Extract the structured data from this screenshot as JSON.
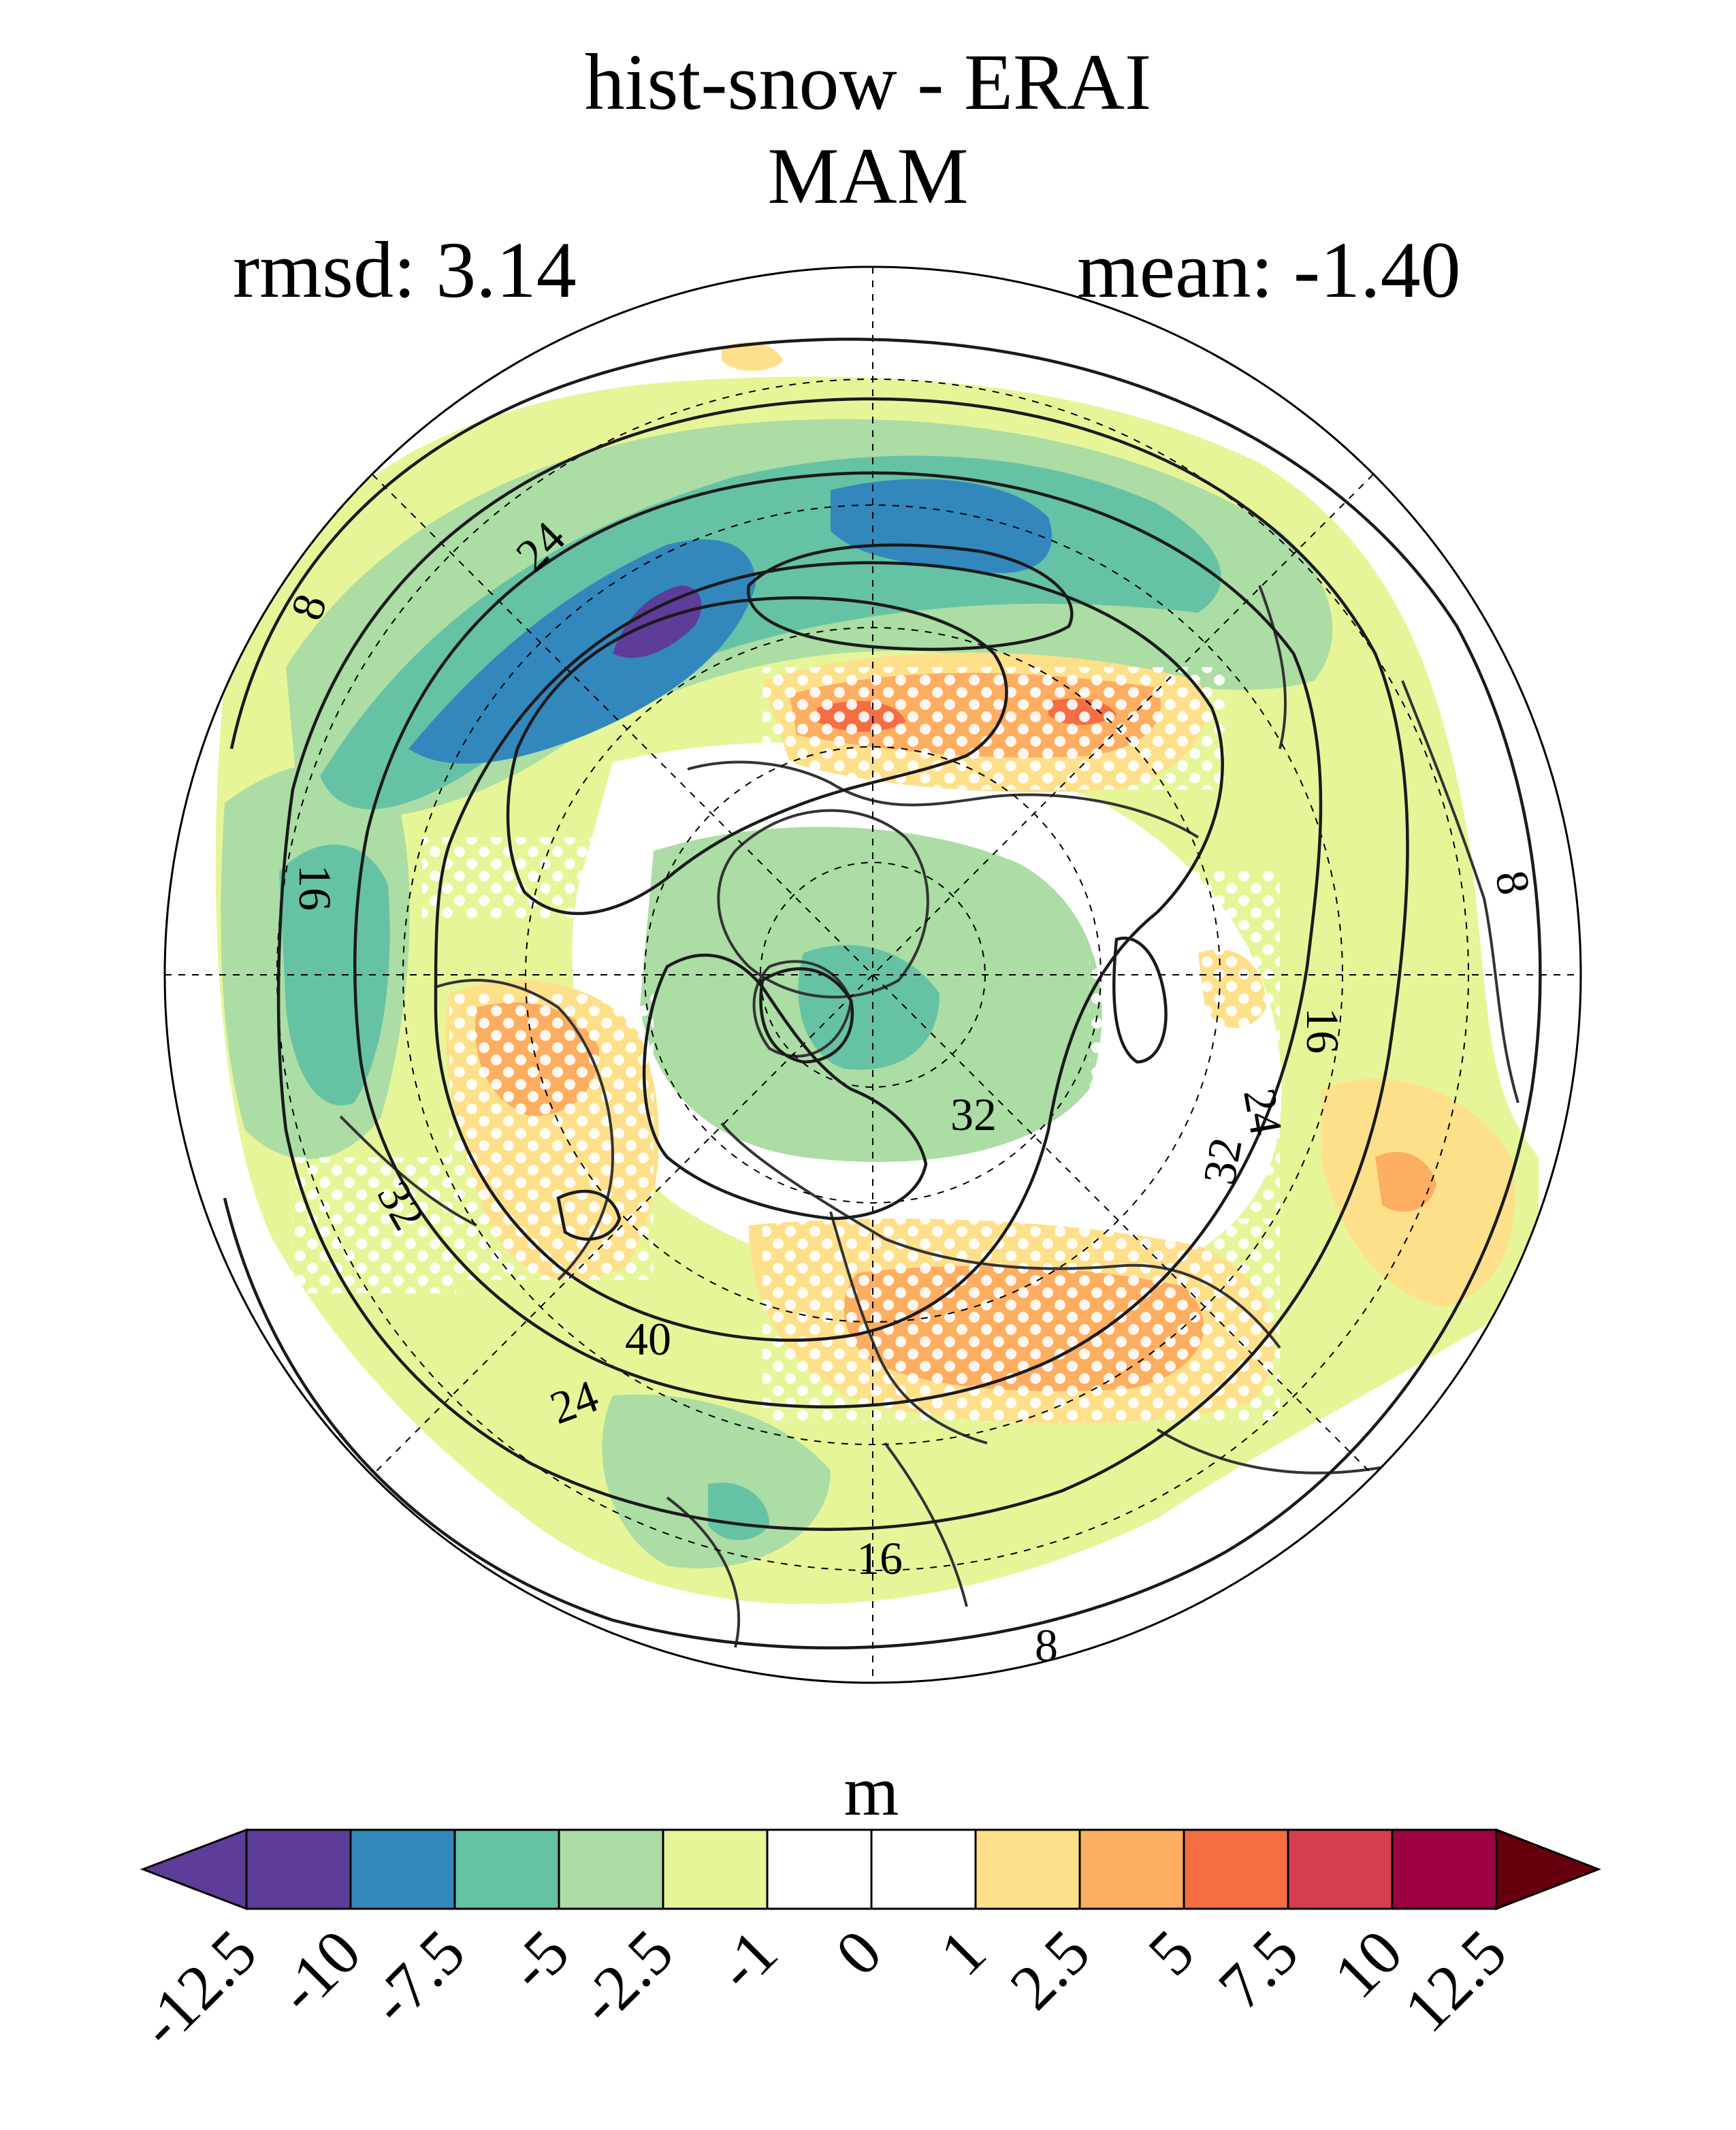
{
  "figure": {
    "title": "hist-snow - ERAI",
    "season": "MAM",
    "rmsd_text": "rmsd: 3.14",
    "mean_text": "mean: -1.40"
  },
  "map": {
    "projection": "north polar stereographic",
    "contour_labels": [
      "8",
      "8",
      "8",
      "16",
      "16",
      "16",
      "24",
      "24",
      "24",
      "32",
      "32",
      "32",
      "40"
    ],
    "stippling": "white dots"
  },
  "colorbar": {
    "units": "m",
    "ticks": [
      "-12.5",
      "-10",
      "-7.5",
      "-5",
      "-2.5",
      "-1",
      "0",
      "1",
      "2.5",
      "5",
      "7.5",
      "10",
      "12.5"
    ],
    "colors": [
      "#5e3c99",
      "#3288bd",
      "#66c2a5",
      "#abdda4",
      "#e6f598",
      "#ffffff",
      "#ffffff",
      "#fee08b",
      "#fdae61",
      "#f46d43",
      "#d53e4f",
      "#9e0142"
    ],
    "under_color": "#5e3c99",
    "over_color": "#67000d"
  }
}
